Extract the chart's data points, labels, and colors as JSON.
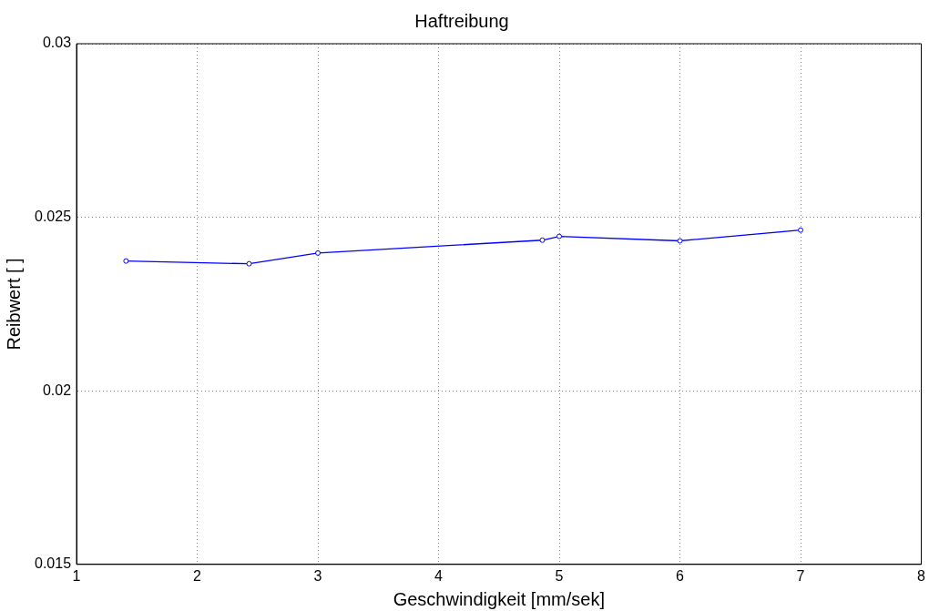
{
  "chart_data": {
    "type": "line",
    "title": "Haftreibung",
    "xlabel": "Geschwindigkeit [mm/sek]",
    "ylabel": "Reibwert [ ]",
    "x": [
      1.41,
      2.43,
      3.0,
      4.86,
      5.0,
      6.0,
      7.0
    ],
    "series": [
      {
        "color": "#0000ff",
        "values": [
          0.02374,
          0.02366,
          0.02397,
          0.02434,
          0.02445,
          0.02432,
          0.02463
        ]
      }
    ],
    "xlim": [
      1,
      8
    ],
    "xticks": [
      1,
      2,
      3,
      4,
      5,
      6,
      7,
      8
    ],
    "ylim": [
      0.015,
      0.03
    ],
    "yticks": [
      0.015,
      0.02,
      0.025,
      0.03
    ],
    "grid": true,
    "legend": false,
    "marker": "circle",
    "line_style": "solid"
  }
}
